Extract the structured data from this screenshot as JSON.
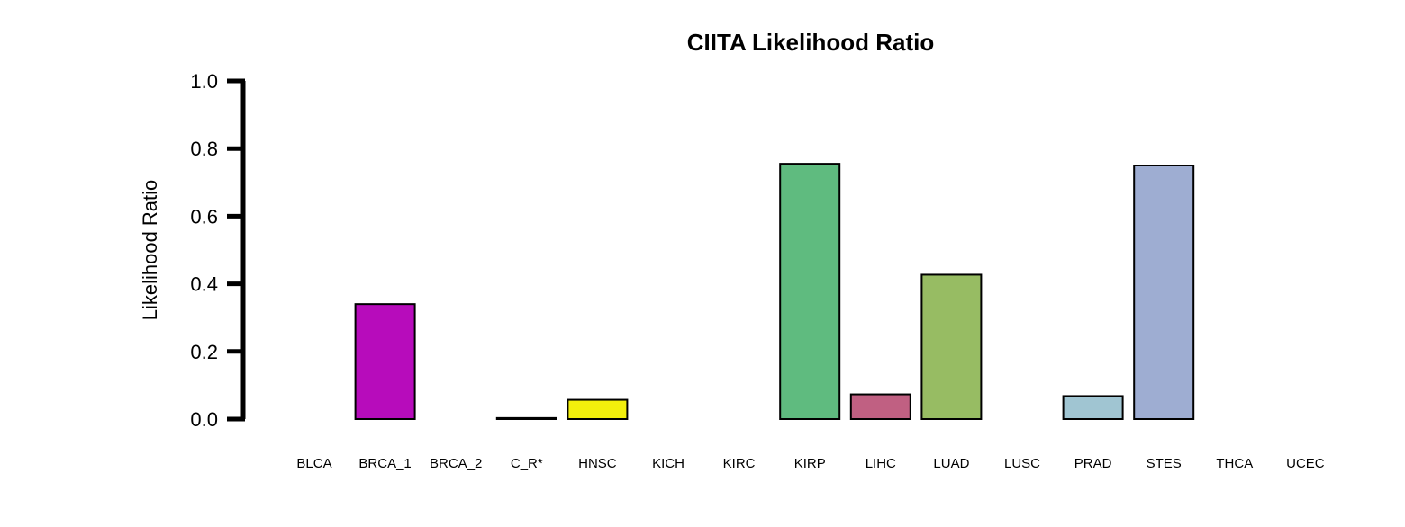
{
  "chart_data": {
    "type": "bar",
    "title": "CIITA Likelihood Ratio",
    "ylabel": "Likelihood Ratio",
    "xlabel": "",
    "ylim": [
      0,
      1
    ],
    "yticks": [
      "0.0",
      "0.2",
      "0.4",
      "0.6",
      "0.8",
      "1.0"
    ],
    "grid": false,
    "categories": [
      "BLCA",
      "BRCA_1",
      "BRCA_2",
      "C_R*",
      "HNSC",
      "KICH",
      "KIRC",
      "KIRP",
      "LIHC",
      "LUAD",
      "LUSC",
      "PRAD",
      "STES",
      "THCA",
      "UCEC"
    ],
    "values": [
      0.0,
      0.34,
      0.0,
      0.003,
      0.057,
      0.0,
      0.0,
      0.755,
      0.073,
      0.427,
      0.0,
      0.068,
      0.75,
      0.0,
      0.0
    ],
    "colors": [
      "#ffffff",
      "#b70cbb",
      "#ffffff",
      "#ffffff",
      "#f2ef0c",
      "#ffffff",
      "#ffffff",
      "#5fbb7f",
      "#c06082",
      "#97bc63",
      "#ffffff",
      "#a0c5d2",
      "#9eadd2",
      "#ffffff",
      "#ffffff"
    ]
  }
}
